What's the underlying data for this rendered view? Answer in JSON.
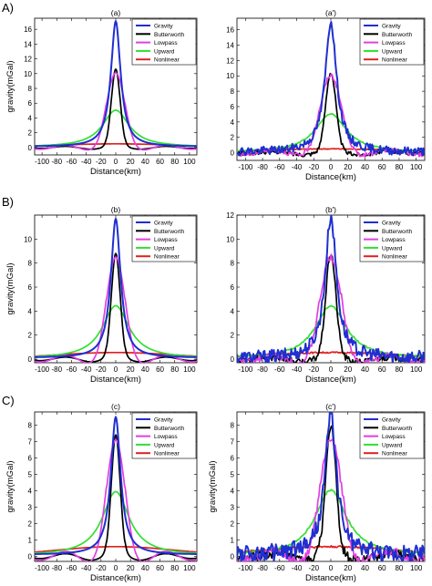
{
  "row_labels": [
    "A)",
    "B)",
    "C)"
  ],
  "legend_entries": [
    "Gravity",
    "Butterworth",
    "Lowpass",
    "Upward",
    "Nonlinear"
  ],
  "series_colors": {
    "Gravity": "#1f2fd0",
    "Butterworth": "#000000",
    "Lowpass": "#e040e0",
    "Upward": "#30e030",
    "Nonlinear": "#e02020"
  },
  "chart_data": [
    {
      "type": "line",
      "title": "(a)",
      "row": "A)",
      "noisy": false,
      "xlabel": "Distance(km)",
      "ylabel": "gravity(mGal)",
      "xlim": [
        -110,
        110
      ],
      "ylim": [
        -1,
        17.5
      ],
      "xticks": [
        -100,
        -80,
        -60,
        -40,
        -20,
        0,
        20,
        40,
        60,
        80,
        100
      ],
      "yticks": [
        0,
        2,
        4,
        6,
        8,
        10,
        12,
        14,
        16
      ],
      "legend_position": "top-right",
      "series": [
        {
          "name": "Gravity",
          "peak": 17.0
        },
        {
          "name": "Butterworth",
          "peak": 10.6
        },
        {
          "name": "Lowpass",
          "peak": 10.1
        },
        {
          "name": "Upward",
          "peak": 5.0
        },
        {
          "name": "Nonlinear",
          "peak": 0.45
        }
      ]
    },
    {
      "type": "line",
      "title": "(a')",
      "row": "A)",
      "noisy": true,
      "xlabel": "Distance(km)",
      "ylabel": "",
      "xlim": [
        -110,
        110
      ],
      "ylim": [
        -1,
        17.5
      ],
      "xticks": [
        -100,
        -80,
        -60,
        -40,
        -20,
        0,
        20,
        40,
        60,
        80,
        100
      ],
      "yticks": [
        0,
        2,
        4,
        6,
        8,
        10,
        12,
        14,
        16
      ],
      "legend_position": "top-right",
      "series": [
        {
          "name": "Gravity",
          "peak": 17.0
        },
        {
          "name": "Butterworth",
          "peak": 10.5
        },
        {
          "name": "Lowpass",
          "peak": 10.1
        },
        {
          "name": "Upward",
          "peak": 5.0
        },
        {
          "name": "Nonlinear",
          "peak": 0.45
        }
      ]
    },
    {
      "type": "line",
      "title": "(b)",
      "row": "B)",
      "noisy": false,
      "xlabel": "Distance(km)",
      "ylabel": "gravity(mGal)",
      "xlim": [
        -110,
        110
      ],
      "ylim": [
        -0.3,
        12
      ],
      "xticks": [
        -100,
        -80,
        -60,
        -40,
        -20,
        0,
        20,
        40,
        60,
        80,
        100
      ],
      "yticks": [
        0,
        2,
        4,
        6,
        8,
        10
      ],
      "legend_position": "top-right",
      "series": [
        {
          "name": "Gravity",
          "peak": 11.6
        },
        {
          "name": "Butterworth",
          "peak": 8.8
        },
        {
          "name": "Lowpass",
          "peak": 8.5
        },
        {
          "name": "Upward",
          "peak": 4.4
        },
        {
          "name": "Nonlinear",
          "peak": 0.5
        }
      ]
    },
    {
      "type": "line",
      "title": "(b')",
      "row": "B)",
      "noisy": true,
      "xlabel": "Distance(km)",
      "ylabel": "",
      "xlim": [
        -110,
        110
      ],
      "ylim": [
        -0.3,
        12
      ],
      "xticks": [
        -100,
        -80,
        -60,
        -40,
        -20,
        0,
        20,
        40,
        60,
        80,
        100
      ],
      "yticks": [
        0,
        2,
        4,
        6,
        8,
        10,
        12
      ],
      "legend_position": "top-right",
      "series": [
        {
          "name": "Gravity",
          "peak": 11.8
        },
        {
          "name": "Butterworth",
          "peak": 8.8
        },
        {
          "name": "Lowpass",
          "peak": 8.5
        },
        {
          "name": "Upward",
          "peak": 4.4
        },
        {
          "name": "Nonlinear",
          "peak": 0.5
        }
      ]
    },
    {
      "type": "line",
      "title": "(c)",
      "row": "C)",
      "noisy": false,
      "xlabel": "Distance(km)",
      "ylabel": "gravity(mGal)",
      "xlim": [
        -110,
        110
      ],
      "ylim": [
        -0.3,
        8.8
      ],
      "xticks": [
        -100,
        -80,
        -60,
        -40,
        -20,
        0,
        20,
        40,
        60,
        80,
        100
      ],
      "yticks": [
        0,
        1,
        2,
        3,
        4,
        5,
        6,
        7,
        8
      ],
      "legend_position": "top-right",
      "series": [
        {
          "name": "Gravity",
          "peak": 8.4
        },
        {
          "name": "Butterworth",
          "peak": 7.4
        },
        {
          "name": "Lowpass",
          "peak": 7.1
        },
        {
          "name": "Upward",
          "peak": 3.9
        },
        {
          "name": "Nonlinear",
          "peak": 0.55
        }
      ]
    },
    {
      "type": "line",
      "title": "(c')",
      "row": "C)",
      "noisy": true,
      "xlabel": "Distance(km)",
      "ylabel": "gravity(mGal)",
      "xlim": [
        -110,
        110
      ],
      "ylim": [
        -0.3,
        8.8
      ],
      "xticks": [
        -100,
        -80,
        -60,
        -40,
        -20,
        0,
        20,
        40,
        60,
        80,
        100
      ],
      "yticks": [
        0,
        1,
        2,
        3,
        4,
        5,
        6,
        7,
        8
      ],
      "legend_position": "top-right",
      "series": [
        {
          "name": "Gravity",
          "peak": 8.7
        },
        {
          "name": "Butterworth",
          "peak": 8.0
        },
        {
          "name": "Lowpass",
          "peak": 7.3
        },
        {
          "name": "Upward",
          "peak": 4.0
        },
        {
          "name": "Nonlinear",
          "peak": 0.55
        }
      ]
    }
  ]
}
